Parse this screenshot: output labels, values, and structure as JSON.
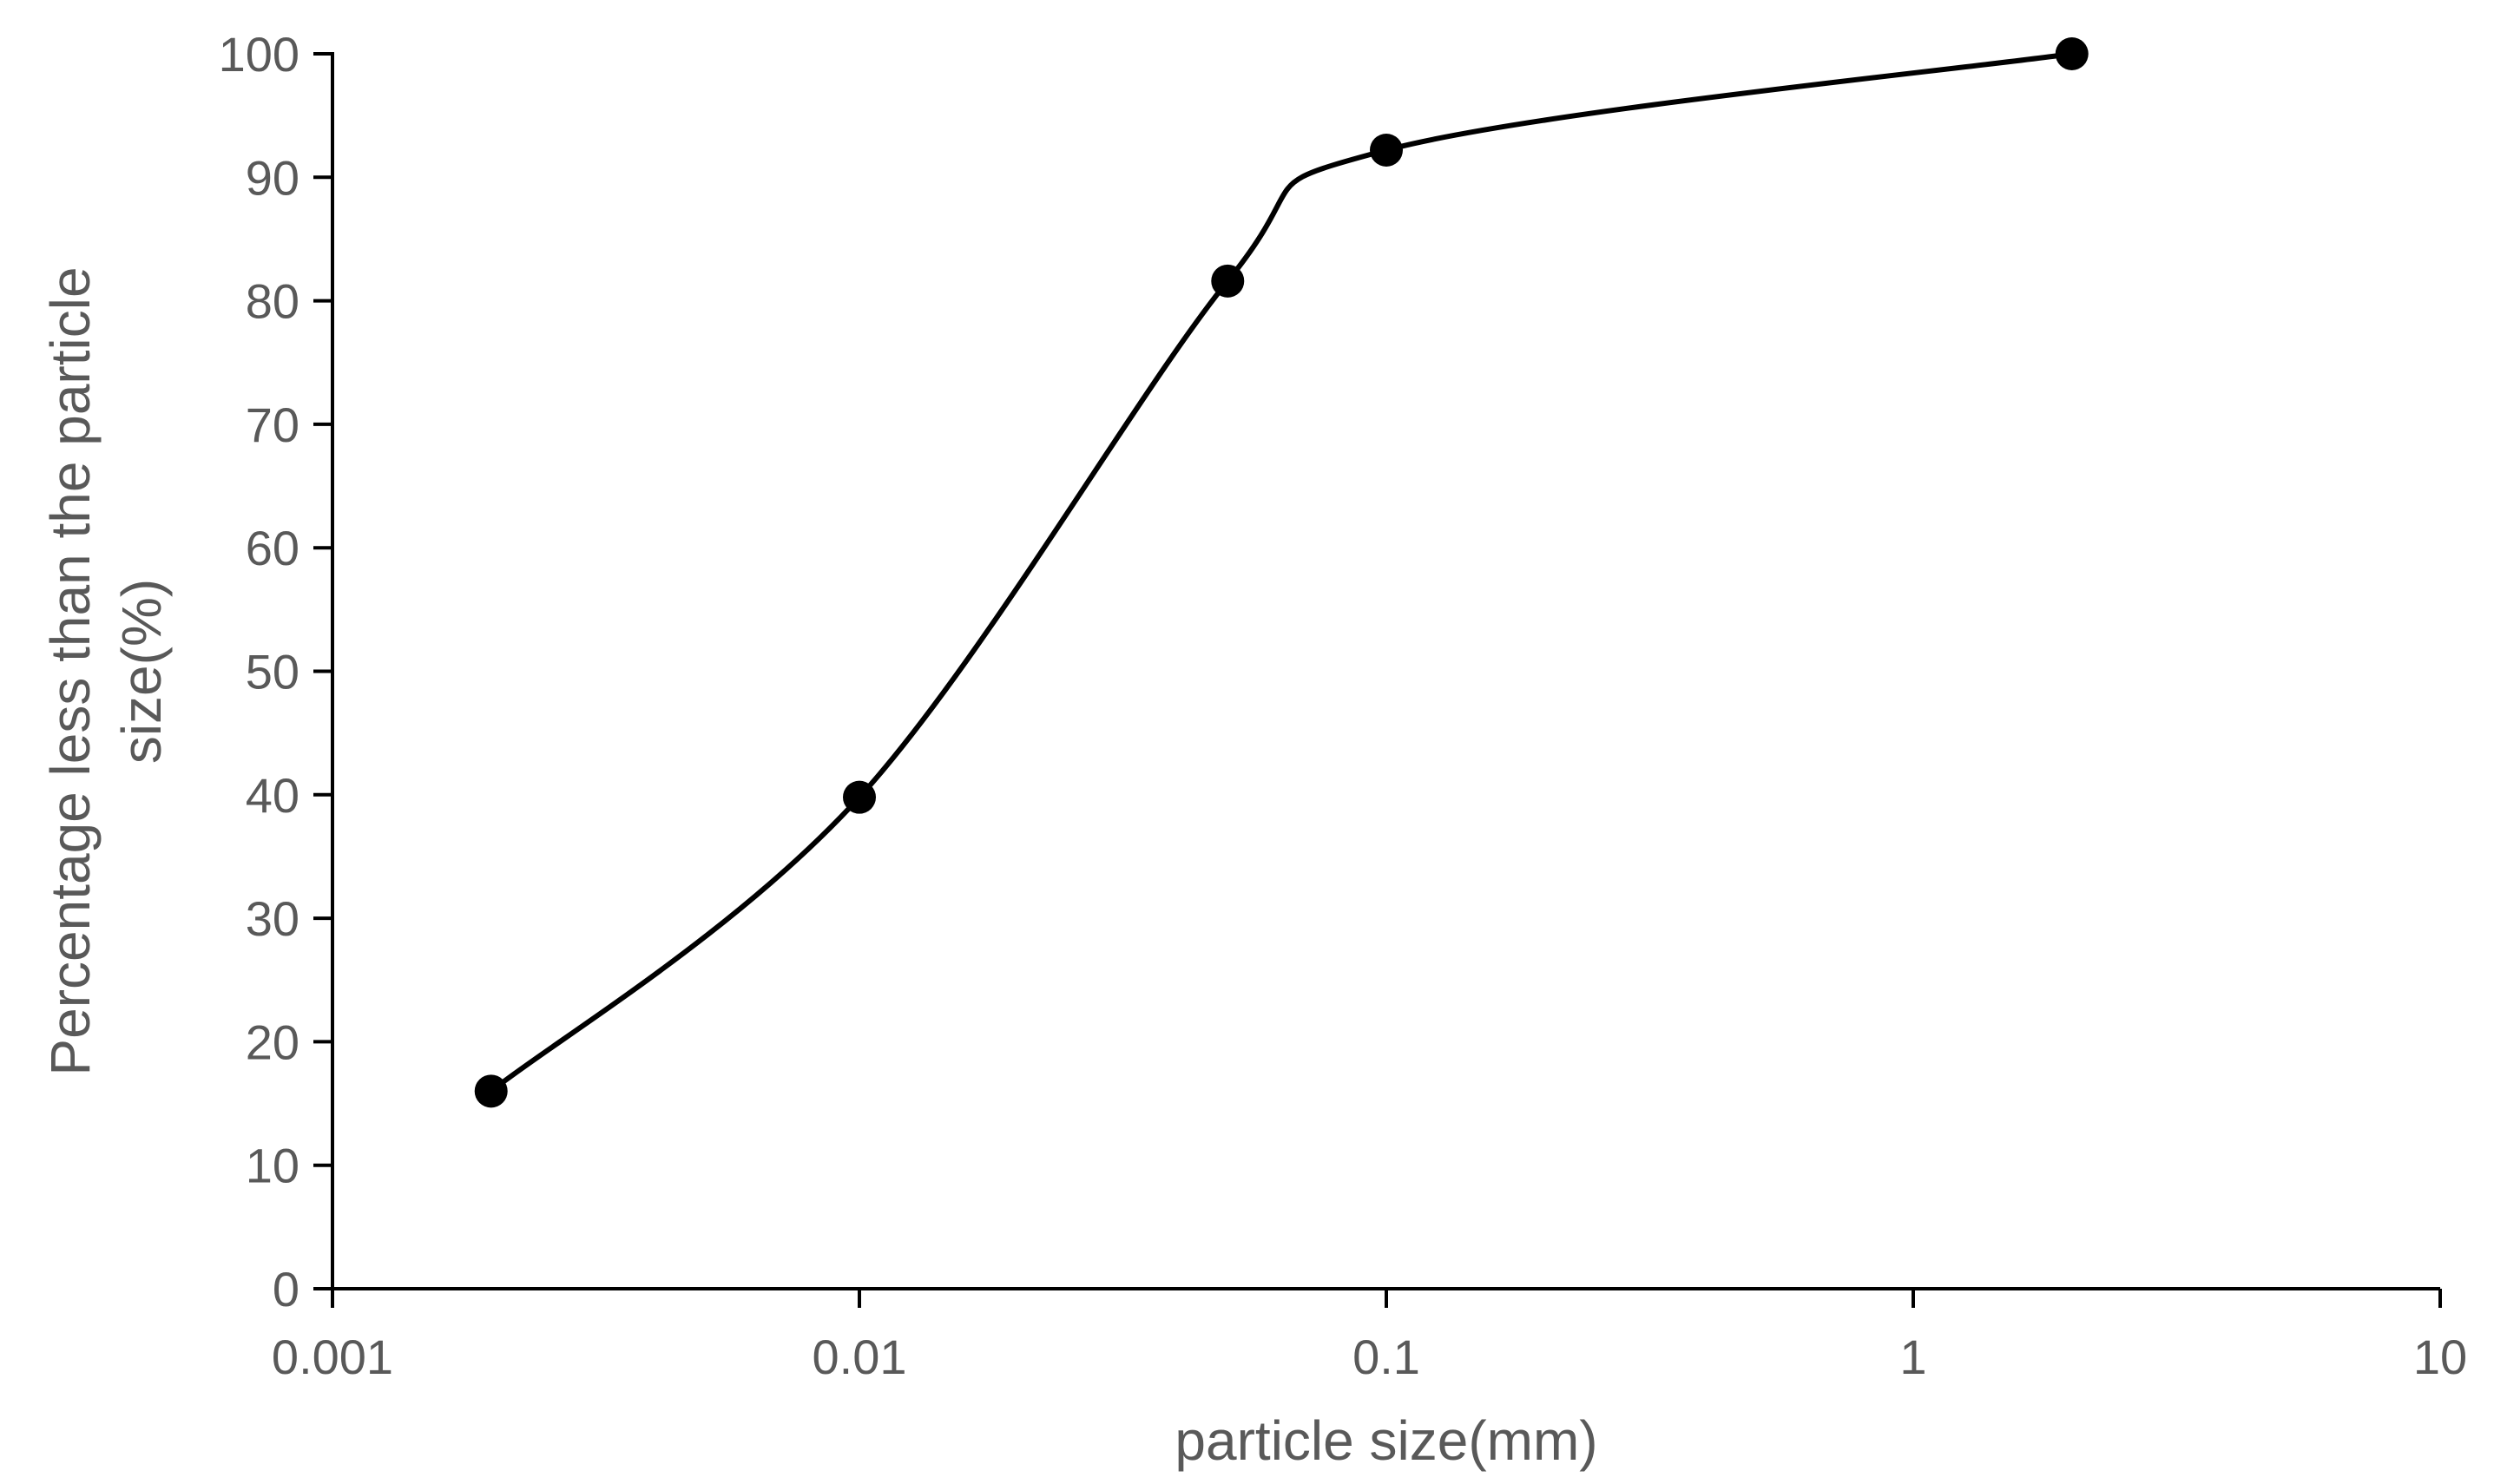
{
  "chart_data": {
    "type": "scatter",
    "title": "",
    "xlabel": "particle size(mm)",
    "ylabel_lines": [
      "Percentage less than the particle",
      "size(%)"
    ],
    "x_scale": "log",
    "xlim": [
      0.001,
      10
    ],
    "ylim": [
      0,
      100
    ],
    "x_ticks": [
      "0.001",
      "0.01",
      "0.1",
      "1",
      "10"
    ],
    "y_ticks": [
      "0",
      "10",
      "20",
      "30",
      "40",
      "50",
      "60",
      "70",
      "80",
      "90",
      "100"
    ],
    "grid": false,
    "legend": "none",
    "line_style": "smoothed",
    "colors": {
      "line": "#000000",
      "marker": "#000000",
      "axis": "#000000",
      "text": "#595959"
    },
    "series": [
      {
        "x": [
          0.002,
          0.01,
          0.05,
          0.1,
          2
        ],
        "y": [
          16,
          39.8,
          81.6,
          92.2,
          100
        ]
      }
    ]
  }
}
